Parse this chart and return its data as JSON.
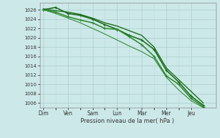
{
  "background_color": "#cce8e8",
  "grid_color_major": "#aacccc",
  "grid_color_minor": "#bbdddd",
  "xlabel": "Pression niveau de la mer( hPa )",
  "ylim": [
    1005,
    1027.5
  ],
  "yticks": [
    1006,
    1008,
    1010,
    1012,
    1014,
    1016,
    1018,
    1020,
    1022,
    1024,
    1026
  ],
  "x_labels": [
    "Dim",
    "Ven",
    "Sam",
    "Lun",
    "Mar",
    "Mer",
    "Jeu"
  ],
  "x_tick_pos": [
    0,
    1,
    2,
    3,
    4,
    5,
    6
  ],
  "x_minor_pos": [
    0.5,
    1.5,
    2.5,
    3.5,
    4.5,
    5.5
  ],
  "xlim": [
    -0.15,
    7.0
  ],
  "series": [
    {
      "x": [
        0,
        0.5,
        1.0,
        1.5,
        2.0,
        2.5,
        3.0,
        3.5,
        4.0,
        4.5,
        5.0,
        5.5,
        6.0,
        6.5
      ],
      "y": [
        1026.2,
        1025.8,
        1025.5,
        1025.0,
        1024.2,
        1023.2,
        1022.5,
        1021.5,
        1020.5,
        1018.0,
        1013.5,
        1011.0,
        1008.5,
        1006.0
      ],
      "marker": false,
      "linewidth": 1.0,
      "color": "#1a6b1a"
    },
    {
      "x": [
        0,
        0.5,
        1.0,
        1.5,
        2.0,
        2.5,
        3.0,
        3.5,
        4.0,
        4.5,
        5.0,
        5.5,
        6.0,
        6.5
      ],
      "y": [
        1026.0,
        1026.5,
        1025.2,
        1024.8,
        1024.0,
        1022.8,
        1021.8,
        1020.5,
        1019.5,
        1017.5,
        1013.0,
        1010.5,
        1007.5,
        1005.5
      ],
      "marker": true,
      "linewidth": 1.2,
      "color": "#1a6b1a"
    },
    {
      "x": [
        0,
        0.5,
        1.0,
        1.5,
        2.0,
        2.5,
        3.0,
        3.5,
        4.0,
        4.5,
        5.0,
        5.5,
        6.0,
        6.5
      ],
      "y": [
        1026.0,
        1025.5,
        1024.5,
        1023.8,
        1023.2,
        1022.0,
        1021.8,
        1020.2,
        1018.5,
        1016.0,
        1011.8,
        1010.0,
        1007.0,
        1005.2
      ],
      "marker": true,
      "linewidth": 1.2,
      "color": "#2d8b2d"
    },
    {
      "x": [
        0,
        0.5,
        1.0,
        1.5,
        2.0,
        2.5,
        3.0,
        3.5,
        4.0,
        4.5,
        5.0,
        5.5,
        6.0,
        6.5
      ],
      "y": [
        1026.0,
        1025.2,
        1024.2,
        1023.2,
        1022.0,
        1020.8,
        1019.5,
        1018.2,
        1017.0,
        1015.5,
        1011.5,
        1008.8,
        1006.5,
        1005.0
      ],
      "marker": false,
      "linewidth": 0.8,
      "color": "#2d8b2d"
    }
  ]
}
